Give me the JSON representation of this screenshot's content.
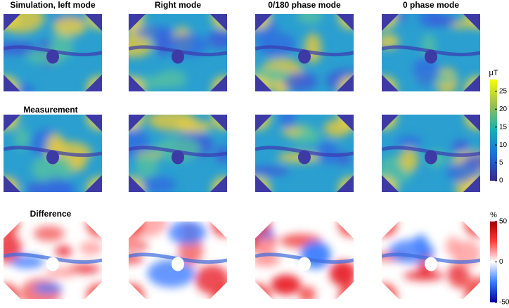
{
  "titles": [
    "Simulation, left mode",
    "Right mode",
    "0/180 phase mode",
    "0 phase mode"
  ],
  "row_labels": [
    "Measurement",
    "Difference"
  ],
  "colorbars": [
    {
      "unit": "µT",
      "lim": [
        0,
        28.3
      ],
      "ticks": [
        0,
        5,
        10,
        15,
        20,
        25
      ]
    },
    {
      "unit": "%",
      "lim": [
        -50,
        50
      ],
      "ticks": [
        -50,
        0,
        50
      ]
    }
  ]
}
